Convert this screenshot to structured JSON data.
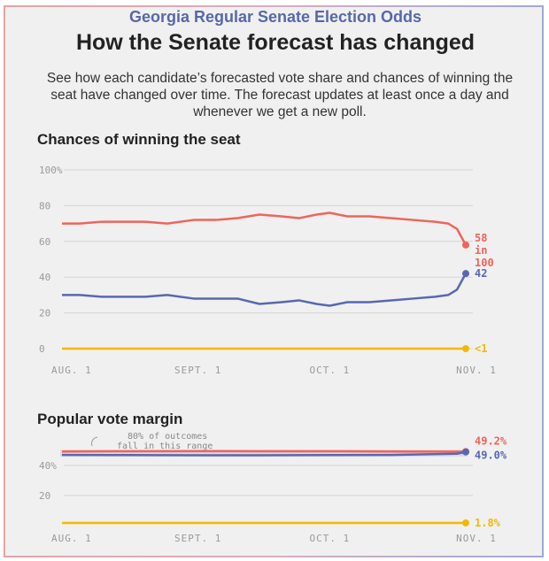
{
  "header": {
    "overline": "Georgia Regular Senate Election Odds",
    "title": "How the Senate forecast has changed",
    "description": "See how each candidate’s forecasted vote share and chances of winning the seat have changed over time. The forecast updates at least once a day and whenever we get a new poll."
  },
  "colors": {
    "red": "#f0645a",
    "blue": "#5868b0",
    "yellow": "#f5b800",
    "grid": "#d5d5d5",
    "axis_text": "#9a9a9a"
  },
  "chart_data": [
    {
      "type": "line",
      "title": "Chances of winning the seat",
      "x_ticks": [
        "AUG. 1",
        "SEPT. 1",
        "OCT. 1",
        "NOV. 1"
      ],
      "y_ticks": [
        "100%",
        "80",
        "60",
        "40",
        "20",
        "0"
      ],
      "ylim": [
        0,
        100
      ],
      "grid": true,
      "x_dates": [
        "Aug 1",
        "Aug 5",
        "Aug 10",
        "Aug 15",
        "Aug 20",
        "Aug 25",
        "Aug 31",
        "Sep 5",
        "Sep 10",
        "Sep 15",
        "Sep 20",
        "Sep 24",
        "Sep 28",
        "Oct 1",
        "Oct 5",
        "Oct 10",
        "Oct 15",
        "Oct 20",
        "Oct 25",
        "Oct 28",
        "Oct 30",
        "Nov 1"
      ],
      "series": [
        {
          "color": "red",
          "values": [
            70,
            70,
            71,
            71,
            71,
            70,
            72,
            72,
            73,
            75,
            74,
            73,
            75,
            76,
            74,
            74,
            73,
            72,
            71,
            70,
            67,
            58
          ],
          "end_label": [
            "58",
            "in",
            "100"
          ]
        },
        {
          "color": "blue",
          "values": [
            30,
            30,
            29,
            29,
            29,
            30,
            28,
            28,
            28,
            25,
            26,
            27,
            25,
            24,
            26,
            26,
            27,
            28,
            29,
            30,
            33,
            42
          ],
          "end_label": [
            "42"
          ]
        },
        {
          "color": "yellow",
          "values": [
            0,
            0,
            0,
            0,
            0,
            0,
            0,
            0,
            0,
            0,
            0,
            0,
            0,
            0,
            0,
            0,
            0,
            0,
            0,
            0,
            0,
            0
          ],
          "end_label": [
            "<1"
          ]
        }
      ]
    },
    {
      "type": "line",
      "title": "Popular vote margin",
      "x_ticks": [
        "AUG. 1",
        "SEPT. 1",
        "OCT. 1",
        "NOV. 1"
      ],
      "y_ticks": [
        "40%",
        "20"
      ],
      "annotation": [
        "80% of outcomes",
        "fall in this range"
      ],
      "x_dates": [
        "Aug 1",
        "Aug 15",
        "Sep 1",
        "Sep 15",
        "Oct 1",
        "Oct 15",
        "Oct 30",
        "Nov 1"
      ],
      "series": [
        {
          "color": "red",
          "values": [
            49.3,
            49.4,
            49.5,
            49.4,
            49.4,
            49.3,
            49.2,
            49.2
          ],
          "end_label": [
            "49.2%"
          ]
        },
        {
          "color": "blue",
          "values": [
            47.0,
            46.9,
            46.8,
            46.8,
            46.9,
            47.0,
            47.8,
            49.0
          ],
          "end_label": [
            "49.0%"
          ]
        },
        {
          "color": "yellow",
          "values": [
            1.8,
            1.8,
            1.8,
            1.8,
            1.8,
            1.8,
            1.8,
            1.8
          ],
          "end_label": [
            "1.8%"
          ]
        }
      ]
    }
  ]
}
